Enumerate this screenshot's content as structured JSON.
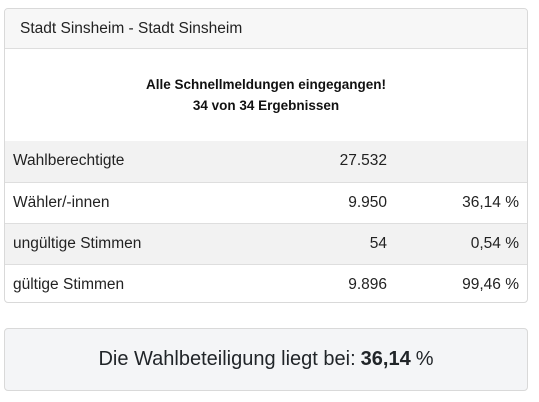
{
  "card": {
    "title": "Stadt Sinsheim - Stadt Sinsheim",
    "status_line1": "Alle Schnellmeldungen eingegangen!",
    "status_line2": "34 von 34 Ergebnissen"
  },
  "rows": [
    {
      "label": "Wahlberechtigte",
      "count": "27.532",
      "percent": ""
    },
    {
      "label": "Wähler/-innen",
      "count": "9.950",
      "percent": "36,14 %"
    },
    {
      "label": "ungültige Stimmen",
      "count": "54",
      "percent": "0,54 %"
    },
    {
      "label": "gültige Stimmen",
      "count": "9.896",
      "percent": "99,46 %"
    }
  ],
  "summary": {
    "text": "Die Wahlbeteiligung liegt bei:",
    "value": "36,14",
    "unit": "%"
  }
}
